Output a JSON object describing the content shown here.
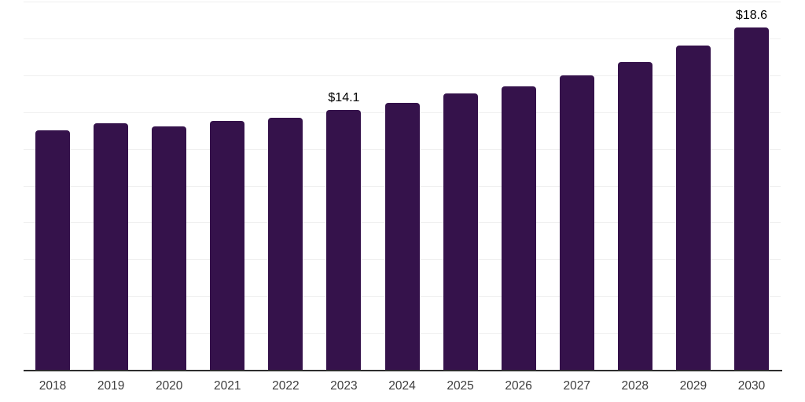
{
  "chart_data": {
    "type": "bar",
    "categories": [
      "2018",
      "2019",
      "2020",
      "2021",
      "2022",
      "2023",
      "2024",
      "2025",
      "2026",
      "2027",
      "2028",
      "2029",
      "2030"
    ],
    "values": [
      13.0,
      13.4,
      13.2,
      13.5,
      13.7,
      14.1,
      14.5,
      15.0,
      15.4,
      16.0,
      16.7,
      17.6,
      18.6
    ],
    "data_labels": [
      "",
      "",
      "",
      "",
      "",
      "$14.1",
      "",
      "",
      "",
      "",
      "",
      "",
      "$18.6"
    ],
    "ylim": [
      0,
      20
    ],
    "grid": "horizontal",
    "grid_step": 2,
    "legend": "none",
    "colors": {
      "bar": "#35124b",
      "gridline": "#f0f0f0",
      "axis_line": "#2e2e2e",
      "tick_label": "#3d3d3d",
      "data_label": "#000000",
      "background": "#ffffff"
    }
  }
}
